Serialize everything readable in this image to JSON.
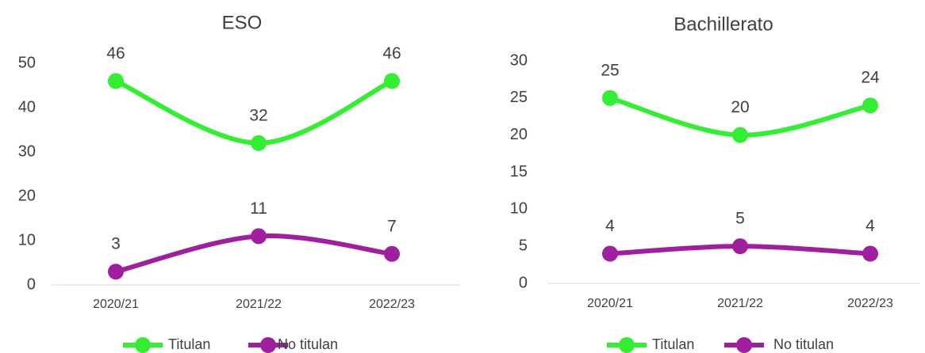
{
  "chart_data": [
    {
      "type": "line",
      "title": "ESO",
      "categories": [
        "2020/21",
        "2021/22",
        "2022/23"
      ],
      "series": [
        {
          "name": "Titulan",
          "color": "#33ee33",
          "values": [
            46,
            32,
            46
          ]
        },
        {
          "name": "No titulan",
          "color": "#9f1f9f",
          "values": [
            3,
            11,
            7
          ]
        }
      ],
      "ylim": [
        0,
        50
      ],
      "yticks": [
        0,
        10,
        20,
        30,
        40,
        50
      ],
      "grid": false,
      "legend": "bottom"
    },
    {
      "type": "line",
      "title": "Bachillerato",
      "categories": [
        "2020/21",
        "2021/22",
        "2022/23"
      ],
      "series": [
        {
          "name": "Titulan",
          "color": "#33ee33",
          "values": [
            25,
            20,
            24
          ]
        },
        {
          "name": "No titulan",
          "color": "#9f1f9f",
          "values": [
            4,
            5,
            4
          ]
        }
      ],
      "ylim": [
        0,
        30
      ],
      "yticks": [
        0,
        5,
        10,
        15,
        20,
        25,
        30
      ],
      "grid": false,
      "legend": "bottom"
    }
  ]
}
